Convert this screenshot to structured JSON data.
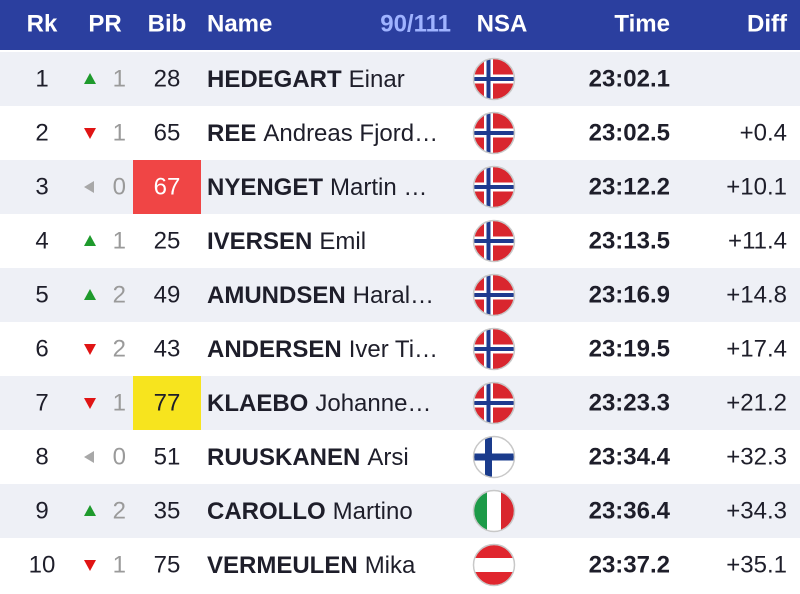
{
  "header": {
    "rank": "Rk",
    "pr": "PR",
    "bib": "Bib",
    "name": "Name",
    "count": "90/111",
    "nsa": "NSA",
    "time": "Time",
    "diff": "Diff"
  },
  "rows": [
    {
      "rank": 1,
      "pr": 1,
      "bib": 28,
      "surname": "HEDEGART",
      "given": "Einar",
      "time": "23:02.1"
    },
    {
      "rank": 2,
      "pr": 1,
      "bib": 65,
      "surname": "REE",
      "given": "Andreas Fjord…",
      "time": "23:02.5",
      "diff": "+0.4"
    },
    {
      "rank": 3,
      "pr": 0,
      "bib": 67,
      "surname": "NYENGET",
      "given": "Martin …",
      "time": "23:12.2",
      "diff": "+10.1"
    },
    {
      "rank": 4,
      "pr": 1,
      "bib": 25,
      "surname": "IVERSEN",
      "given": "Emil",
      "time": "23:13.5",
      "diff": "+11.4"
    },
    {
      "rank": 5,
      "pr": 2,
      "bib": 49,
      "surname": "AMUNDSEN",
      "given": "Haral…",
      "time": "23:16.9",
      "diff": "+14.8"
    },
    {
      "rank": 6,
      "pr": 2,
      "bib": 43,
      "surname": "ANDERSEN",
      "given": "Iver Ti…",
      "time": "23:19.5",
      "diff": "+17.4"
    },
    {
      "rank": 7,
      "pr": 1,
      "bib": 77,
      "surname": "KLAEBO",
      "given": "Johanne…",
      "time": "23:23.3",
      "diff": "+21.2"
    },
    {
      "rank": 8,
      "pr": 0,
      "bib": 51,
      "surname": "RUUSKANEN",
      "given": "Arsi",
      "time": "23:34.4",
      "diff": "+32.3"
    },
    {
      "rank": 9,
      "pr": 2,
      "bib": 35,
      "surname": "CAROLLO",
      "given": "Martino",
      "time": "23:36.4",
      "diff": "+34.3"
    },
    {
      "rank": 10,
      "pr": 1,
      "bib": 75,
      "surname": "VERMEULEN",
      "given": "Mika",
      "time": "23:37.2",
      "diff": "+35.1"
    }
  ]
}
